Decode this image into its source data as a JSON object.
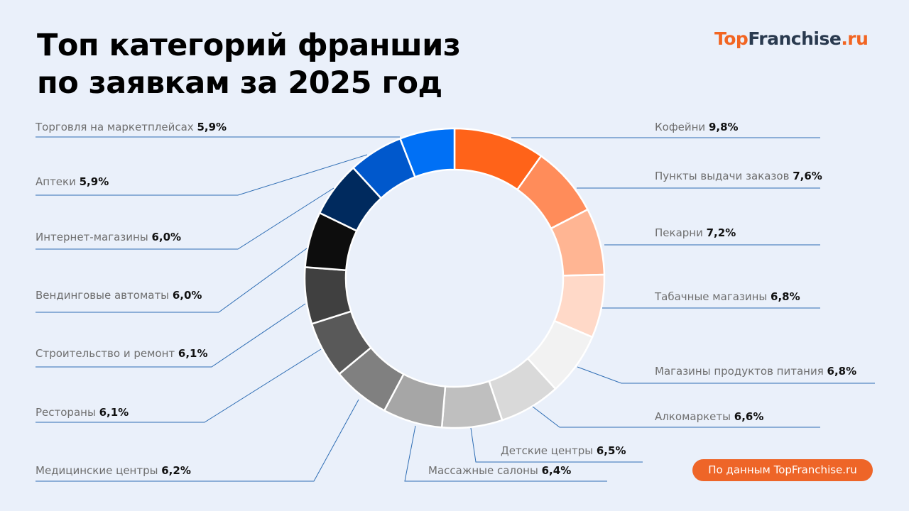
{
  "header": {
    "title_line1": "Топ категорий франшиз",
    "title_line2": "по заявкам за 2025 год",
    "logo_part1": "Top",
    "logo_part2": "Franchise",
    "logo_part3": ".ru"
  },
  "footer": {
    "source": "По данным TopFranchise.ru"
  },
  "chart_data": {
    "type": "pie",
    "style": "donut",
    "unit": "%",
    "categories": [
      "Кофейни",
      "Пункты выдачи заказов",
      "Пекарни",
      "Табачные магазины",
      "Магазины продуктов питания",
      "Алкомаркеты",
      "Детские центры",
      "Массажные салоны",
      "Медицинские центры",
      "Рестораны",
      "Строительство и ремонт",
      "Вендинговые автоматы",
      "Интернет-магазины",
      "Аптеки",
      "Торговля на маркетплейсах"
    ],
    "values": [
      9.8,
      7.6,
      7.2,
      6.8,
      6.8,
      6.6,
      6.5,
      6.4,
      6.2,
      6.1,
      6.1,
      6.0,
      6.0,
      5.9,
      5.9
    ],
    "value_labels": [
      "9,8%",
      "7,6%",
      "7,2%",
      "6,8%",
      "6,8%",
      "6,6%",
      "6,5%",
      "6,4%",
      "6,2%",
      "6,1%",
      "6,1%",
      "6,0%",
      "6,0%",
      "5,9%",
      "5,9%"
    ],
    "colors": [
      "#FF6319",
      "#FF8C5A",
      "#FFB593",
      "#FFD9C8",
      "#F2F2F2",
      "#D9D9D9",
      "#BFBFBF",
      "#A6A6A6",
      "#808080",
      "#595959",
      "#404040",
      "#0D0D0D",
      "#002A5E",
      "#0058CC",
      "#0070F5"
    ],
    "leader_color": "#2E6DB4",
    "background": "#EAF0FA"
  }
}
